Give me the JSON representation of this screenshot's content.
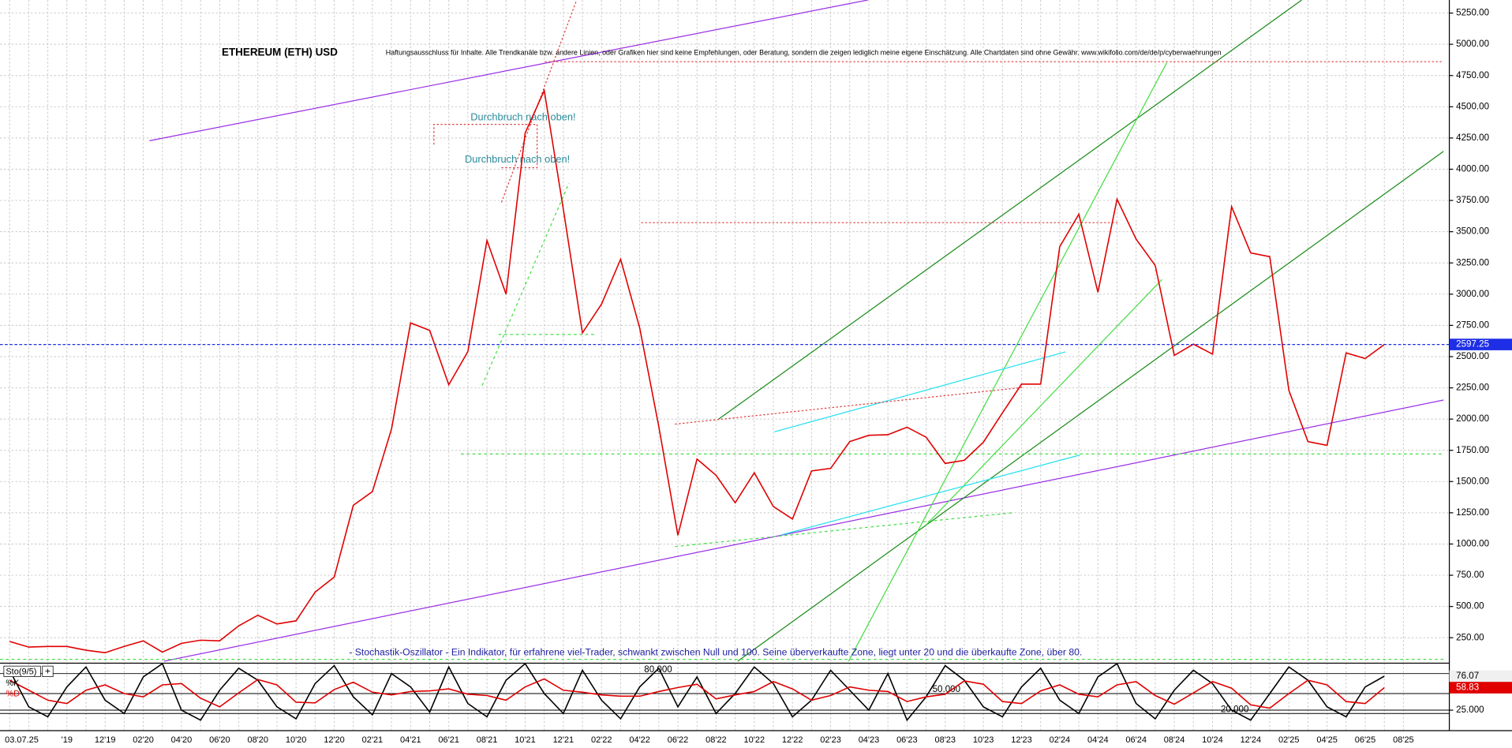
{
  "chart_data": [
    {
      "type": "line",
      "title": "ETHEREUM (ETH) USD",
      "disclaimer": "Haftungsausschluss für Inhalte. Alle Trendkanäle bzw. andere Linien, oder Grafiken hier sind keine Empfehlungen, oder Beratung, sondern die zeigen lediglich meine eigene Einschätzung. Alle Chartdaten sind ohne Gewähr. www.wikifolio.com/de/de/p/cyberwaehrungen",
      "date": "03.07.25",
      "annotations": [
        "Durchbruch nach oben!",
        "Durchbruch nach oben!",
        "- Stochastik-Oszillator - Ein Indikator, für erfahrene viel-Trader, schwankt zwischen Null und 100. Seine überverkaufte Zone, liegt unter 20 und die überkaufte Zone, über 80."
      ],
      "categories": [
        null,
        null,
        null,
        "'19",
        null,
        "12'19",
        null,
        "02'20",
        null,
        "04'20",
        null,
        "06'20",
        null,
        "08'20",
        null,
        "10'20",
        null,
        "12'20",
        null,
        "02'21",
        null,
        "04'21",
        null,
        "06'21",
        null,
        "08'21",
        null,
        "10'21",
        null,
        "12'21",
        null,
        "02'22",
        null,
        "04'22",
        null,
        "06'22",
        null,
        "08'22",
        null,
        "10'22",
        null,
        "12'22",
        null,
        "02'23",
        null,
        "04'23",
        null,
        "06'23",
        null,
        "08'23",
        null,
        "10'23",
        null,
        "12'23",
        null,
        "02'24",
        null,
        "04'24",
        null,
        "06'24",
        null,
        "08'24",
        null,
        "10'24",
        null,
        "12'24",
        null,
        "02'25",
        null,
        "04'25",
        null,
        "06'25",
        null,
        "08'25"
      ],
      "series": [
        {
          "name": "ETH",
          "color": "#e00000",
          "values": [
            220,
            175,
            180,
            180,
            150,
            130,
            180,
            225,
            135,
            205,
            230,
            225,
            345,
            430,
            360,
            385,
            615,
            735,
            1310,
            1420,
            1920,
            2770,
            2710,
            2275,
            2540,
            3430,
            3000,
            4290,
            4630,
            3680,
            2690,
            2920,
            3280,
            2730,
            1940,
            1070,
            1680,
            1550,
            1330,
            1570,
            1300,
            1200,
            1585,
            1605,
            1820,
            1870,
            1875,
            1935,
            1855,
            1645,
            1670,
            1815,
            2050,
            2280,
            2280,
            3380,
            3640,
            3015,
            3760,
            3440,
            3230,
            2510,
            2600,
            2520,
            3700,
            3330,
            3300,
            2230,
            1820,
            1790,
            2530,
            2485,
            2597.25,
            null
          ]
        }
      ],
      "last_price": 2597.25,
      "ylim": [
        50,
        5350
      ],
      "yticks": [
        {
          "value": 250,
          "label": "250.00"
        },
        {
          "value": 500,
          "label": "500.00"
        },
        {
          "value": 750,
          "label": "750.00"
        },
        {
          "value": 1000,
          "label": "1000.00"
        },
        {
          "value": 1250,
          "label": "1250.00"
        },
        {
          "value": 1500,
          "label": "1500.00"
        },
        {
          "value": 1750,
          "label": "1750.00"
        },
        {
          "value": 2000,
          "label": "2000.00"
        },
        {
          "value": 2250,
          "label": "2250.00"
        },
        {
          "value": 2500,
          "label": "2500.00"
        },
        {
          "value": 2750,
          "label": "2750.00"
        },
        {
          "value": 3000,
          "label": "3000.00"
        },
        {
          "value": 3250,
          "label": "3250.00"
        },
        {
          "value": 3500,
          "label": "3500.00"
        },
        {
          "value": 3750,
          "label": "3750.00"
        },
        {
          "value": 4000,
          "label": "4000.00"
        },
        {
          "value": 4250,
          "label": "4250.00"
        },
        {
          "value": 4500,
          "label": "4500.00"
        },
        {
          "value": 4750,
          "label": "4750.00"
        },
        {
          "value": 5000,
          "label": "5000.00"
        },
        {
          "value": 5250,
          "label": "5250.00"
        }
      ],
      "grid": true
    },
    {
      "type": "line",
      "title": "Sto(9/5)",
      "series": [
        {
          "name": "%K",
          "color": "#000000",
          "values": [
            85,
            30,
            15,
            60,
            90,
            40,
            20,
            75,
            95,
            25,
            10,
            55,
            88,
            70,
            30,
            12,
            65,
            92,
            45,
            18,
            80,
            60,
            22,
            90,
            35,
            15,
            70,
            95,
            50,
            20,
            85,
            40,
            12,
            60,
            88,
            30,
            75,
            20,
            50,
            90,
            65,
            15,
            40,
            85,
            55,
            25,
            80,
            10,
            45,
            92,
            70,
            30,
            15,
            60,
            88,
            40,
            20,
            75,
            95,
            35,
            12,
            55,
            85,
            65,
            25,
            10,
            50,
            90,
            70,
            30,
            15,
            60,
            76.07,
            null
          ]
        },
        {
          "name": "%D",
          "color": "#e00000",
          "values": [
            70,
            55,
            40,
            35,
            55,
            63,
            50,
            45,
            63,
            65,
            43,
            30,
            51,
            71,
            63,
            37,
            36,
            56,
            67,
            52,
            48,
            53,
            54,
            57,
            49,
            47,
            40,
            60,
            72,
            55,
            52,
            48,
            46,
            46,
            53,
            59,
            64,
            42,
            48,
            53,
            68,
            57,
            40,
            47,
            60,
            55,
            53,
            38,
            45,
            49,
            69,
            64,
            38,
            35,
            54,
            63,
            49,
            45,
            63,
            68,
            47,
            34,
            51,
            68,
            58,
            33,
            28,
            50,
            70,
            63,
            38,
            35,
            58.83,
            null
          ]
        }
      ],
      "levels": [
        {
          "value": 80,
          "label": "80.000"
        },
        {
          "value": 50,
          "label": "50.000"
        },
        {
          "value": 20,
          "label": "20.000"
        }
      ],
      "ylim": [
        0,
        100
      ],
      "yticks": [
        {
          "value": 25,
          "label": "25.000"
        }
      ]
    }
  ]
}
